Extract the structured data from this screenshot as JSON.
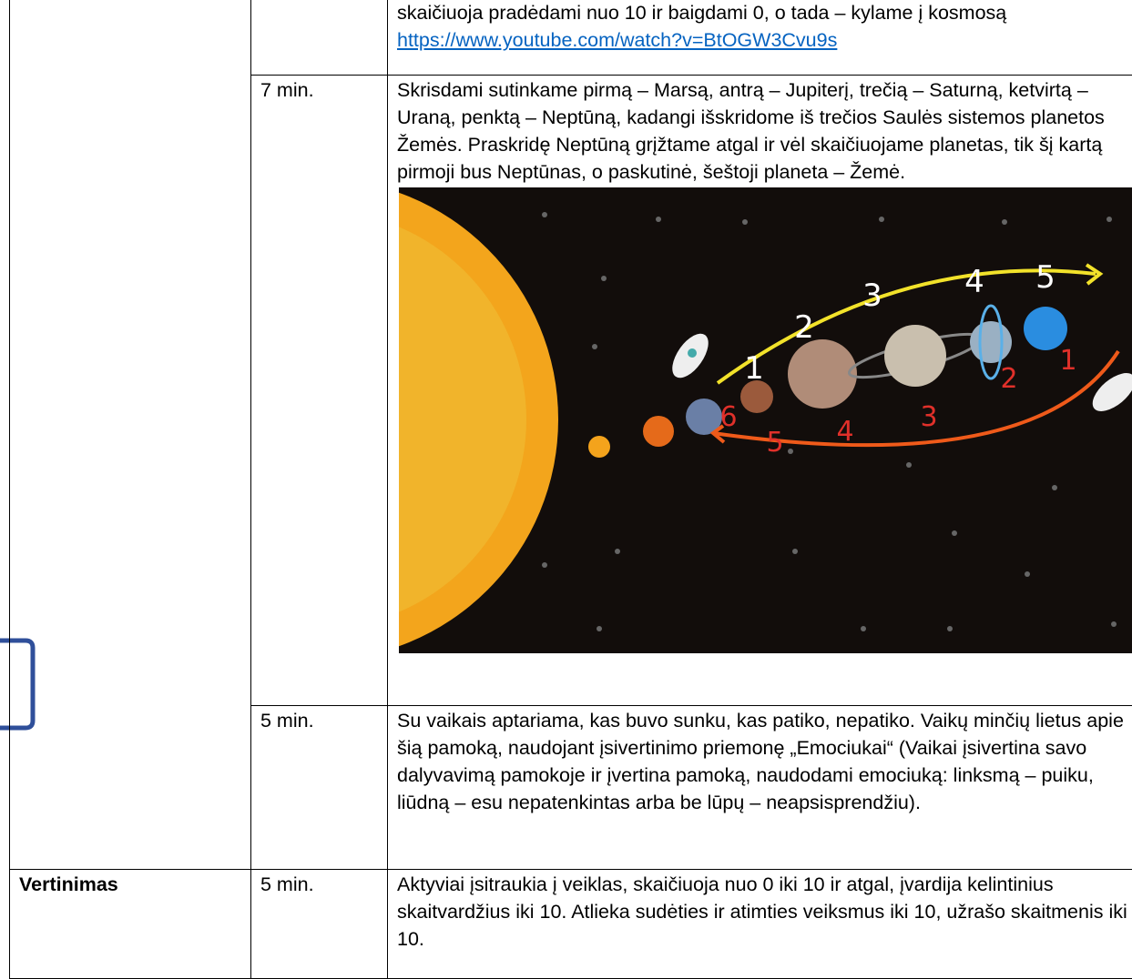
{
  "table": {
    "rows": [
      {
        "text": "skaičiuoja pradėdami nuo 10 ir baigdami 0, o tada – kylame į kosmosą",
        "link": "https://www.youtube.com/watch?v=BtOGW3Cvu9s"
      },
      {
        "time": "7 min.",
        "text": "Skrisdami sutinkame pirmą – Marsą, antrą – Jupiterį, trečią – Saturną, ketvirtą – Uraną, penktą – Neptūną, kadangi išskridome iš trečios Saulės sistemos planetos Žemės. Praskridę Neptūną grįžtame atgal ir vėl skaičiuojame planetas, tik šį kartą pirmoji bus Neptūnas, o paskutinė, šeštoji planeta – Žemė.",
        "image": {
          "outbound_labels": [
            "1",
            "2",
            "3",
            "4",
            "5"
          ],
          "return_labels": [
            "6",
            "5",
            "4",
            "3",
            "2",
            "1"
          ]
        }
      },
      {
        "time": "5 min.",
        "text": "Su vaikais aptariama, kas buvo sunku, kas patiko, nepatiko. Vaikų minčių lietus apie šią pamoką, naudojant įsivertinimo priemonę „Emociukai“ (Vaikai įsivertina savo dalyvavimą pamokoje ir įvertina pamoką, naudodami emociuką: linksmą – puiku, liūdną – esu nepatenkintas arba be lūpų – neapsisprendžiu)."
      },
      {
        "label": "Vertinimas",
        "time": "5 min.",
        "text": "Aktyviai įsitraukia į veiklas, skaičiuoja nuo 0 iki 10 ir atgal, įvardija kelintinius skaitvardžius iki 10. Atlieka sudėties ir atimties veiksmus iki 10, užrašo skaitmenis iki 10."
      }
    ]
  }
}
